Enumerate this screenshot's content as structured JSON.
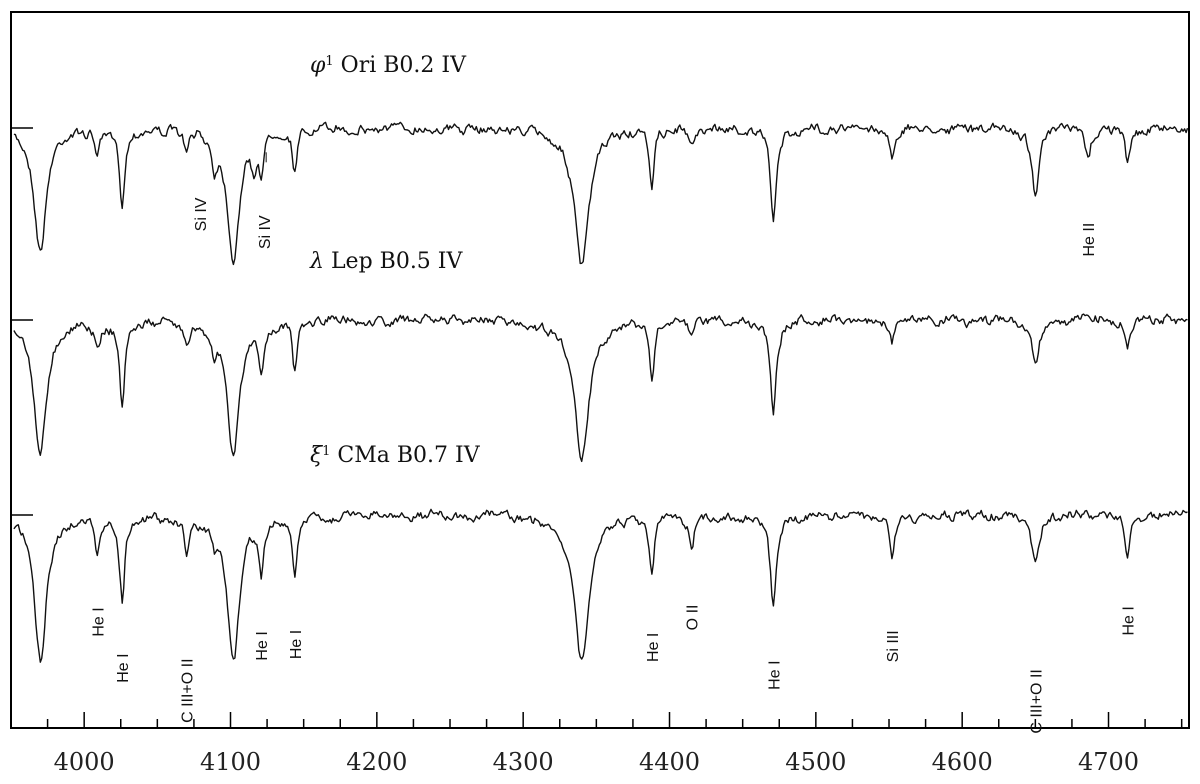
{
  "chart_data": {
    "type": "line",
    "xlabel": "",
    "ylabel": "",
    "xlim": [
      3950,
      4755
    ],
    "x_ticks": [
      4000,
      4100,
      4200,
      4300,
      4400,
      4500,
      4600,
      4700
    ],
    "x_minor_step": 25,
    "grid": false,
    "legend": "none",
    "colors": {
      "line": "#111111",
      "frame": "#000000",
      "background": "#ffffff"
    },
    "continuum": 1.0,
    "series": [
      {
        "name": "φ¹ Ori  B0.2 IV",
        "name_parts": {
          "symbol": "φ",
          "sup": "1",
          "rest": " Ori  B0.2 IV"
        },
        "lines": [
          {
            "x": 3970,
            "depth": 0.82,
            "width": 5
          },
          {
            "x": 4009,
            "depth": 0.16,
            "width": 2
          },
          {
            "x": 4026,
            "depth": 0.48,
            "width": 2.2
          },
          {
            "x": 4070,
            "depth": 0.14,
            "width": 2
          },
          {
            "x": 4089,
            "depth": 0.18,
            "width": 2
          },
          {
            "x": 4102,
            "depth": 0.86,
            "width": 5
          },
          {
            "x": 4116,
            "depth": 0.22,
            "width": 2
          },
          {
            "x": 4121,
            "depth": 0.24,
            "width": 1.8
          },
          {
            "x": 4144,
            "depth": 0.28,
            "width": 2
          },
          {
            "x": 4340,
            "depth": 0.92,
            "width": 6
          },
          {
            "x": 4388,
            "depth": 0.36,
            "width": 2
          },
          {
            "x": 4415,
            "depth": 0.12,
            "width": 2
          },
          {
            "x": 4471,
            "depth": 0.62,
            "width": 2.4
          },
          {
            "x": 4552,
            "depth": 0.18,
            "width": 2
          },
          {
            "x": 4650,
            "depth": 0.42,
            "width": 3
          },
          {
            "x": 4686,
            "depth": 0.22,
            "width": 2
          },
          {
            "x": 4713,
            "depth": 0.24,
            "width": 2
          }
        ]
      },
      {
        "name": "λ Lep  B0.5 IV",
        "name_parts": {
          "symbol": "λ",
          "sup": "",
          "rest": " Lep  B0.5 IV"
        },
        "lines": [
          {
            "x": 3970,
            "depth": 0.9,
            "width": 5
          },
          {
            "x": 4009,
            "depth": 0.18,
            "width": 2
          },
          {
            "x": 4026,
            "depth": 0.56,
            "width": 2.2
          },
          {
            "x": 4070,
            "depth": 0.12,
            "width": 2
          },
          {
            "x": 4089,
            "depth": 0.14,
            "width": 2
          },
          {
            "x": 4102,
            "depth": 0.9,
            "width": 5
          },
          {
            "x": 4121,
            "depth": 0.32,
            "width": 2
          },
          {
            "x": 4144,
            "depth": 0.34,
            "width": 2
          },
          {
            "x": 4340,
            "depth": 0.9,
            "width": 6
          },
          {
            "x": 4388,
            "depth": 0.4,
            "width": 2
          },
          {
            "x": 4415,
            "depth": 0.12,
            "width": 2
          },
          {
            "x": 4471,
            "depth": 0.6,
            "width": 2.4
          },
          {
            "x": 4552,
            "depth": 0.16,
            "width": 2
          },
          {
            "x": 4650,
            "depth": 0.3,
            "width": 3
          },
          {
            "x": 4713,
            "depth": 0.18,
            "width": 2
          }
        ]
      },
      {
        "name": "ξ¹ CMa  B0.7 IV",
        "name_parts": {
          "symbol": "ξ",
          "sup": "1",
          "rest": " CMa  B0.7 IV"
        },
        "lines": [
          {
            "x": 3970,
            "depth": 0.98,
            "width": 5
          },
          {
            "x": 4009,
            "depth": 0.24,
            "width": 2
          },
          {
            "x": 4026,
            "depth": 0.56,
            "width": 2.2
          },
          {
            "x": 4070,
            "depth": 0.22,
            "width": 2
          },
          {
            "x": 4089,
            "depth": 0.12,
            "width": 2
          },
          {
            "x": 4102,
            "depth": 0.96,
            "width": 5
          },
          {
            "x": 4121,
            "depth": 0.36,
            "width": 2
          },
          {
            "x": 4144,
            "depth": 0.4,
            "width": 2
          },
          {
            "x": 4340,
            "depth": 0.98,
            "width": 6
          },
          {
            "x": 4388,
            "depth": 0.42,
            "width": 2
          },
          {
            "x": 4415,
            "depth": 0.24,
            "width": 2
          },
          {
            "x": 4471,
            "depth": 0.62,
            "width": 2.4
          },
          {
            "x": 4552,
            "depth": 0.3,
            "width": 2
          },
          {
            "x": 4650,
            "depth": 0.32,
            "width": 3
          },
          {
            "x": 4713,
            "depth": 0.26,
            "width": 2
          }
        ]
      }
    ],
    "annotations": [
      {
        "series": 0,
        "x": 4079,
        "text": "Si IV",
        "tick": false
      },
      {
        "series": 0,
        "x": 4123,
        "text": "Si IV",
        "tick": true
      },
      {
        "series": 0,
        "x": 4686,
        "text": "He II",
        "tick": false
      },
      {
        "series": 2,
        "x": 4009,
        "text": "He I",
        "tick": false
      },
      {
        "series": 2,
        "x": 4026,
        "text": "He I",
        "tick": false
      },
      {
        "series": 2,
        "x": 4070,
        "text": "C III+O II",
        "tick": false
      },
      {
        "series": 2,
        "x": 4121,
        "text": "He I",
        "tick": false
      },
      {
        "series": 2,
        "x": 4144,
        "text": "He I",
        "tick": false
      },
      {
        "series": 2,
        "x": 4388,
        "text": "He I",
        "tick": false
      },
      {
        "series": 2,
        "x": 4415,
        "text": "O II",
        "tick": false
      },
      {
        "series": 2,
        "x": 4471,
        "text": "He I",
        "tick": false
      },
      {
        "series": 2,
        "x": 4552,
        "text": "Si III",
        "tick": false
      },
      {
        "series": 2,
        "x": 4650,
        "text": "C III+O II",
        "tick": false
      },
      {
        "series": 2,
        "x": 4713,
        "text": "He I",
        "tick": false
      }
    ]
  }
}
